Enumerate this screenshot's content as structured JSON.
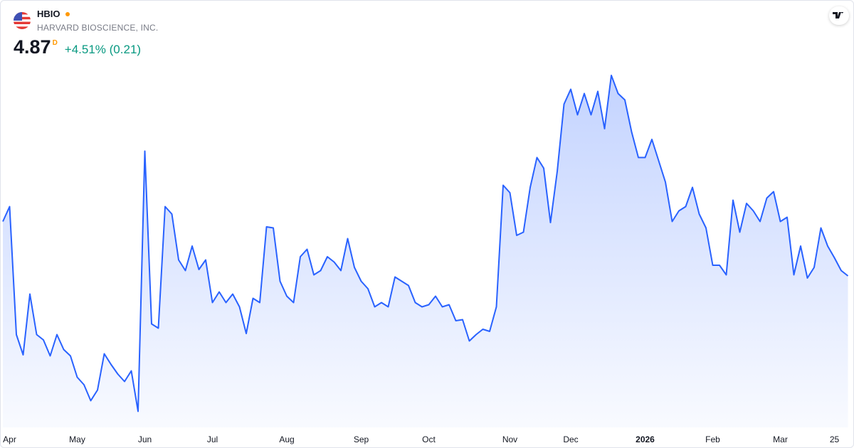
{
  "header": {
    "symbol": "HBIO",
    "company": "HARVARD BIOSCIENCE, INC.",
    "last": "4.87",
    "interval": "D",
    "change": "+4.51% (0.21)"
  },
  "chart_data": {
    "type": "area",
    "color": "#2962ff",
    "ylim": [
      3.45,
      7.45
    ],
    "categories": [
      null,
      "Apr",
      null,
      null,
      null,
      null,
      null,
      null,
      null,
      null,
      null,
      "May",
      null,
      null,
      null,
      null,
      null,
      null,
      null,
      null,
      null,
      "Jun",
      null,
      null,
      null,
      null,
      null,
      null,
      null,
      null,
      null,
      "Jul",
      null,
      null,
      null,
      null,
      null,
      null,
      null,
      null,
      null,
      null,
      "Aug",
      null,
      null,
      null,
      null,
      null,
      null,
      null,
      null,
      null,
      null,
      "Sep",
      null,
      null,
      null,
      null,
      null,
      null,
      null,
      null,
      null,
      "Oct",
      null,
      null,
      null,
      null,
      null,
      null,
      null,
      null,
      null,
      null,
      null,
      "Nov",
      null,
      null,
      null,
      null,
      null,
      null,
      null,
      null,
      "Dec",
      null,
      null,
      null,
      null,
      null,
      null,
      null,
      null,
      null,
      null,
      "2026",
      null,
      null,
      null,
      null,
      null,
      null,
      null,
      null,
      null,
      "Feb",
      null,
      null,
      null,
      null,
      null,
      null,
      null,
      null,
      null,
      "Mar",
      null,
      null,
      null,
      null,
      null,
      null,
      null,
      "25",
      null,
      null
    ],
    "values": [
      5.38,
      5.52,
      4.32,
      4.13,
      4.7,
      4.32,
      4.27,
      4.12,
      4.32,
      4.18,
      4.12,
      3.92,
      3.85,
      3.7,
      3.8,
      4.14,
      4.04,
      3.95,
      3.88,
      3.98,
      3.6,
      6.04,
      4.42,
      4.38,
      5.52,
      5.45,
      5.02,
      4.92,
      5.15,
      4.93,
      5.02,
      4.62,
      4.72,
      4.62,
      4.7,
      4.58,
      4.33,
      4.66,
      4.62,
      5.33,
      5.32,
      4.82,
      4.68,
      4.62,
      5.05,
      5.12,
      4.88,
      4.92,
      5.05,
      5.0,
      4.92,
      5.22,
      4.95,
      4.82,
      4.75,
      4.58,
      4.62,
      4.58,
      4.86,
      4.82,
      4.78,
      4.62,
      4.58,
      4.6,
      4.68,
      4.58,
      4.6,
      4.45,
      4.46,
      4.26,
      4.32,
      4.37,
      4.35,
      4.58,
      5.72,
      5.65,
      5.25,
      5.28,
      5.7,
      5.98,
      5.88,
      5.37,
      5.85,
      6.48,
      6.62,
      6.38,
      6.58,
      6.38,
      6.6,
      6.25,
      6.75,
      6.58,
      6.52,
      6.22,
      5.98,
      5.98,
      6.15,
      5.95,
      5.75,
      5.38,
      5.48,
      5.52,
      5.7,
      5.45,
      5.32,
      4.97,
      4.97,
      4.88,
      5.58,
      5.28,
      5.55,
      5.48,
      5.38,
      5.6,
      5.66,
      5.38,
      5.42,
      4.88,
      5.15,
      4.85,
      4.95,
      5.32,
      5.15,
      5.04,
      4.92,
      4.87
    ]
  }
}
